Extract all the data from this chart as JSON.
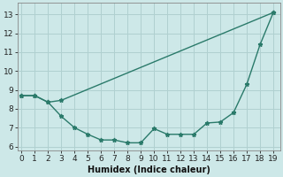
{
  "xlabel": "Humidex (Indice chaleur)",
  "upper_x": [
    0,
    1,
    2,
    3,
    19
  ],
  "upper_y": [
    8.7,
    8.7,
    8.35,
    8.45,
    13.1
  ],
  "lower_x": [
    0,
    1,
    2,
    3,
    4,
    5,
    6,
    7,
    8,
    9,
    10,
    11,
    12,
    13,
    14,
    15,
    16,
    17,
    18,
    19
  ],
  "lower_y": [
    8.7,
    8.7,
    8.35,
    7.6,
    7.0,
    6.65,
    6.35,
    6.35,
    6.2,
    6.2,
    6.95,
    6.65,
    6.65,
    6.65,
    7.25,
    7.3,
    7.8,
    9.3,
    11.4,
    13.1
  ],
  "line_color": "#2a7a6a",
  "bg_color": "#cde8e8",
  "grid_color": "#b0d0d0",
  "ylim": [
    5.8,
    13.6
  ],
  "xlim": [
    -0.3,
    19.5
  ],
  "yticks": [
    6,
    7,
    8,
    9,
    10,
    11,
    12,
    13
  ],
  "xticks": [
    0,
    1,
    2,
    3,
    4,
    5,
    6,
    7,
    8,
    9,
    10,
    11,
    12,
    13,
    14,
    15,
    16,
    17,
    18,
    19
  ],
  "tick_fontsize": 6.5,
  "xlabel_fontsize": 7,
  "marker_size": 3.5,
  "linewidth": 1.0
}
